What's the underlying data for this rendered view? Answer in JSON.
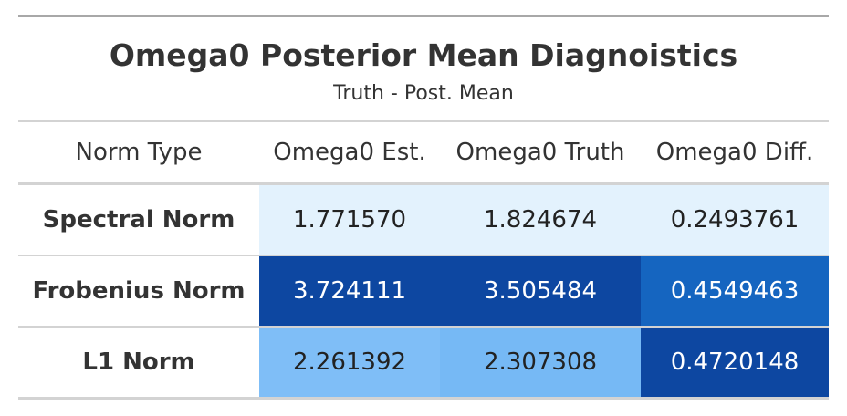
{
  "table": {
    "title": "Omega0 Posterior Mean Diagnoistics",
    "subtitle": "Truth - Post. Mean",
    "columns": [
      "Norm Type",
      "Omega0 Est.",
      "Omega0 Truth",
      "Omega0 Diff."
    ],
    "rows": [
      {
        "label": "Spectral Norm",
        "cells": [
          {
            "value": "1.771570",
            "bg": "#e3f2fd",
            "fg": "#222222"
          },
          {
            "value": "1.824674",
            "bg": "#e3f2fd",
            "fg": "#222222"
          },
          {
            "value": "0.2493761",
            "bg": "#e3f2fd",
            "fg": "#222222"
          }
        ]
      },
      {
        "label": "Frobenius Norm",
        "cells": [
          {
            "value": "3.724111",
            "bg": "#0d47a1",
            "fg": "#ffffff"
          },
          {
            "value": "3.505484",
            "bg": "#0d47a1",
            "fg": "#ffffff"
          },
          {
            "value": "0.4549463",
            "bg": "#1565c0",
            "fg": "#ffffff"
          }
        ]
      },
      {
        "label": "L1 Norm",
        "cells": [
          {
            "value": "2.261392",
            "bg": "#7fbef7",
            "fg": "#222222"
          },
          {
            "value": "2.307308",
            "bg": "#76b9f5",
            "fg": "#222222"
          },
          {
            "value": "0.4720148",
            "bg": "#0d47a1",
            "fg": "#ffffff"
          }
        ]
      }
    ]
  }
}
